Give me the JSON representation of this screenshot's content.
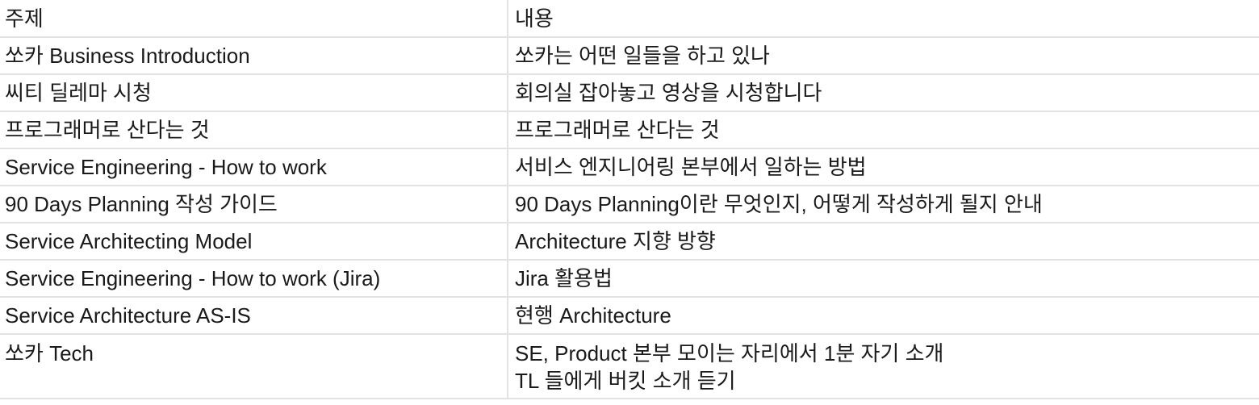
{
  "table": {
    "headers": [
      "주제",
      "내용"
    ],
    "rows": [
      {
        "topic": "쏘카 Business Introduction",
        "content": [
          "쏘카는 어떤 일들을 하고 있나"
        ]
      },
      {
        "topic": "씨티 딜레마 시청",
        "content": [
          "회의실 잡아놓고 영상을 시청합니다"
        ]
      },
      {
        "topic": "프로그래머로 산다는 것",
        "content": [
          "프로그래머로 산다는 것"
        ]
      },
      {
        "topic": "Service Engineering - How to work",
        "content": [
          "서비스 엔지니어링 본부에서 일하는 방법"
        ]
      },
      {
        "topic": "90 Days Planning 작성 가이드",
        "content": [
          "90 Days Planning이란 무엇인지, 어떻게 작성하게 될지 안내"
        ]
      },
      {
        "topic": "Service Architecting Model",
        "content": [
          "Architecture 지향 방향"
        ]
      },
      {
        "topic": "Service Engineering - How to work (Jira)",
        "content": [
          "Jira 활용법"
        ]
      },
      {
        "topic": "Service Architecture AS-IS",
        "content": [
          "현행 Architecture"
        ]
      },
      {
        "topic": "쏘카 Tech",
        "content": [
          "SE, Product 본부 모이는 자리에서 1분 자기 소개",
          "TL 들에게 버킷 소개 듣기"
        ]
      }
    ]
  }
}
